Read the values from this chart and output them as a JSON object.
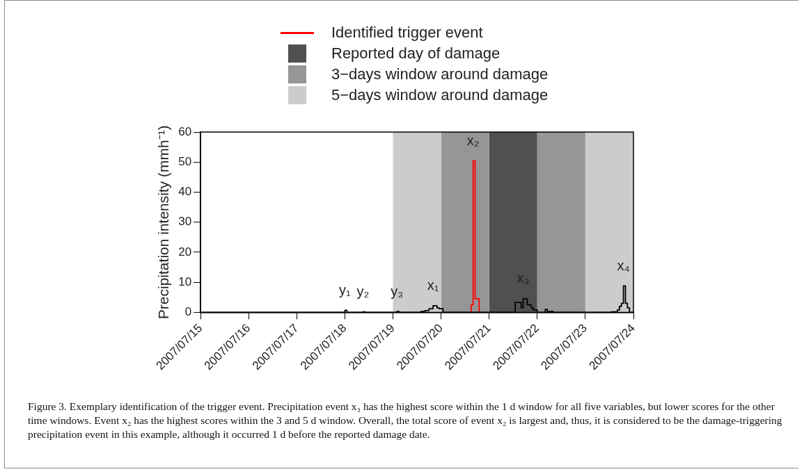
{
  "chart_data": {
    "type": "step",
    "ylabel": "Precipitation intensity (mmh⁻¹)",
    "xlim": [
      "2007-07-15",
      "2007-07-24"
    ],
    "xticks": [
      {
        "value": "2007-07-15",
        "label": "2007/07/15"
      },
      {
        "value": "2007-07-16",
        "label": "2007/07/16"
      },
      {
        "value": "2007-07-17",
        "label": "2007/07/17"
      },
      {
        "value": "2007-07-18",
        "label": "2007/07/18"
      },
      {
        "value": "2007-07-19",
        "label": "2007/07/19"
      },
      {
        "value": "2007-07-20",
        "label": "2007/07/20"
      },
      {
        "value": "2007-07-21",
        "label": "2007/07/21"
      },
      {
        "value": "2007-07-22",
        "label": "2007/07/22"
      },
      {
        "value": "2007-07-23",
        "label": "2007/07/23"
      },
      {
        "value": "2007-07-24",
        "label": "2007/07/24"
      }
    ],
    "ylim": [
      0,
      60
    ],
    "yticks": [
      0,
      10,
      20,
      30,
      40,
      50,
      60
    ],
    "grid": false,
    "legend": "top",
    "marker": "none",
    "line_style": "solid",
    "series": [
      {
        "color": "#000000",
        "x": [
          "2007-07-15T00:00",
          "2007-07-18T00:00",
          "2007-07-18T01:00",
          "2007-07-18T09:00",
          "2007-07-18T10:00",
          "2007-07-19T02:00",
          "2007-07-19T03:00",
          "2007-07-19T14:00",
          "2007-07-19T16:00",
          "2007-07-19T18:00",
          "2007-07-19T20:00",
          "2007-07-19T22:00",
          "2007-07-19T23:00",
          "2007-07-20T01:00",
          "2007-07-21T13:00",
          "2007-07-21T16:00",
          "2007-07-21T17:00",
          "2007-07-21T19:00",
          "2007-07-21T21:00",
          "2007-07-21T22:00",
          "2007-07-22T00:00",
          "2007-07-22T04:00",
          "2007-07-22T05:00",
          "2007-07-22T08:00",
          "2007-07-23T13:00",
          "2007-07-23T16:00",
          "2007-07-23T17:00",
          "2007-07-23T18:00",
          "2007-07-23T19:00",
          "2007-07-23T20:00",
          "2007-07-23T21:00",
          "2007-07-23T22:00",
          "2007-07-24T00:00"
        ],
        "values": [
          0,
          0.7,
          0,
          0.2,
          0,
          0.3,
          0,
          0.3,
          0.6,
          1.2,
          2.2,
          1.5,
          1.2,
          0,
          3.3,
          1.5,
          4.5,
          2.5,
          1.5,
          0.8,
          0,
          1,
          0.3,
          0,
          0.2,
          0.8,
          2,
          3,
          8.8,
          3,
          1.5,
          0,
          0
        ]
      },
      {
        "name": "Identified trigger event",
        "color": "#ff0000",
        "x": [
          "2007-07-20T14:00",
          "2007-07-20T15:00",
          "2007-07-20T16:00",
          "2007-07-20T17:00",
          "2007-07-20T19:00"
        ],
        "values": [
          0,
          2.5,
          50.5,
          4.5,
          0
        ]
      }
    ],
    "bands": [
      {
        "axis": "x",
        "from": "2007-07-21",
        "to": "2007-07-22",
        "label": "Reported day of damage",
        "color": "#505050"
      },
      {
        "axis": "x",
        "from": "2007-07-20",
        "to": "2007-07-21",
        "label": "3−days window around damage",
        "color": "#969696"
      },
      {
        "axis": "x",
        "from": "2007-07-19",
        "to": "2007-07-20",
        "label": "5−days window around damage",
        "color": "#cccccc"
      },
      {
        "axis": "x",
        "from": "2007-07-22",
        "to": "2007-07-23",
        "color": "#969696"
      },
      {
        "axis": "x",
        "from": "2007-07-23",
        "to": "2007-07-24",
        "color": "#cccccc"
      }
    ],
    "annotations": [
      {
        "text": "y₁",
        "x": "2007-07-18T00:00",
        "y": 0.7
      },
      {
        "text": "y₂",
        "x": "2007-07-18T09:00",
        "y": 0.2
      },
      {
        "text": "y₃",
        "x": "2007-07-19T02:00",
        "y": 0.3
      },
      {
        "text": "x₁",
        "x": "2007-07-19T20:00",
        "y": 2.2
      },
      {
        "text": "x₂",
        "x": "2007-07-20T16:00",
        "y": 50.5
      },
      {
        "text": "x₃",
        "x": "2007-07-21T17:00",
        "y": 4.5
      },
      {
        "text": "x₄",
        "x": "2007-07-23T19:00",
        "y": 8.8
      },
      "Figure 3. Exemplary identification of the trigger event. Precipitation event x₃ has the highest score within the 1 d window for all five variables, but lower scores for the other time windows. Event x₂ has the highest scores within the 3 and 5 d window. Overall, the total score of event x₂ is largest and, thus, it is considered to be the damage-triggering precipitation event in this example, although it occurred 1 d before the reported damage date."
    ]
  }
}
